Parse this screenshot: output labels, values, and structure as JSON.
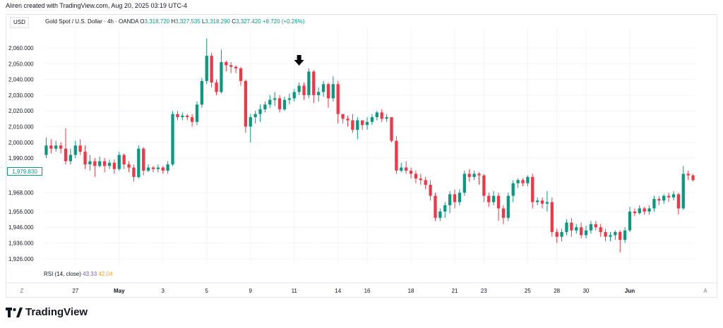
{
  "header": {
    "credit": "Aliren created with TradingView.com, Aug 20, 2025 03:19 UTC-4",
    "currency": "USD"
  },
  "legend": {
    "symbol": "Gold Spot / U.S. Dollar · 4h · OANDA",
    "o_label": "O",
    "o_value": "3,318.720",
    "h_label": "H",
    "h_value": "3,327.535",
    "l_label": "L",
    "l_value": "3,318.290",
    "c_label": "C",
    "c_value": "3,327.420",
    "change": "+8.720 (+0.26%)"
  },
  "rsi": {
    "label": "RSI (14, close)",
    "value1": "43.33",
    "value2": "42.04"
  },
  "current_price": "1,979.830",
  "brand": "TradingView",
  "axis": {
    "left_corner": "Z",
    "right_corner": "A"
  },
  "colors": {
    "up": "#089981",
    "down": "#f23645",
    "grid": "#f0f3fa",
    "arrow": "#000000"
  },
  "chart_data": {
    "type": "candlestick",
    "title": "",
    "ylim": [
      1920,
      2070
    ],
    "grid": true,
    "y_ticks": [
      {
        "value": 2060,
        "label": "2,060.000"
      },
      {
        "value": 2050,
        "label": "2,050.000"
      },
      {
        "value": 2040,
        "label": "2,040.000"
      },
      {
        "value": 2030,
        "label": "2,030.000"
      },
      {
        "value": 2020,
        "label": "2,020.000"
      },
      {
        "value": 2010,
        "label": "2,010.000"
      },
      {
        "value": 2000,
        "label": "2,000.000"
      },
      {
        "value": 1990,
        "label": "1,990.000"
      },
      {
        "value": 1968,
        "label": "1,968.000"
      },
      {
        "value": 1956,
        "label": "1,956.000"
      },
      {
        "value": 1946,
        "label": "1,946.000"
      },
      {
        "value": 1936,
        "label": "1,936.000"
      },
      {
        "value": 1926,
        "label": "1,926.000"
      }
    ],
    "x_ticks": [
      {
        "index": 6,
        "label": "27",
        "bold": false
      },
      {
        "index": 15,
        "label": "May",
        "bold": true
      },
      {
        "index": 24,
        "label": "3",
        "bold": false
      },
      {
        "index": 33,
        "label": "5",
        "bold": false
      },
      {
        "index": 42,
        "label": "9",
        "bold": false
      },
      {
        "index": 51,
        "label": "11",
        "bold": false
      },
      {
        "index": 60,
        "label": "14",
        "bold": false
      },
      {
        "index": 66,
        "label": "16",
        "bold": false
      },
      {
        "index": 75,
        "label": "18",
        "bold": false
      },
      {
        "index": 84,
        "label": "21",
        "bold": false
      },
      {
        "index": 90,
        "label": "23",
        "bold": false
      },
      {
        "index": 99,
        "label": "25",
        "bold": false
      },
      {
        "index": 105,
        "label": "28",
        "bold": false
      },
      {
        "index": 111,
        "label": "30",
        "bold": false
      },
      {
        "index": 120,
        "label": "Jun",
        "bold": true
      }
    ],
    "arrow_index": 52,
    "candles": [
      [
        1992,
        1998,
        1990,
        2003
      ],
      [
        1998,
        1996,
        1993,
        2002
      ],
      [
        1996,
        1998,
        1994,
        2001
      ],
      [
        1998,
        1996,
        1993,
        2000
      ],
      [
        1996,
        1988,
        1986,
        2009
      ],
      [
        1988,
        1992,
        1986,
        1996
      ],
      [
        1992,
        1998,
        1990,
        2001
      ],
      [
        1998,
        1994,
        1992,
        2002
      ],
      [
        1994,
        1986,
        1983,
        1998
      ],
      [
        1986,
        1988,
        1982,
        1992
      ],
      [
        1988,
        1985,
        1978,
        1990
      ],
      [
        1985,
        1988,
        1984,
        1991
      ],
      [
        1988,
        1985,
        1981,
        1990
      ],
      [
        1985,
        1987,
        1983,
        1989
      ],
      [
        1987,
        1983,
        1980,
        1989
      ],
      [
        1983,
        1992,
        1982,
        1994
      ],
      [
        1992,
        1986,
        1983,
        1993
      ],
      [
        1986,
        1984,
        1981,
        1988
      ],
      [
        1984,
        1978,
        1975,
        1986
      ],
      [
        1978,
        1996,
        1977,
        1998
      ],
      [
        1996,
        1982,
        1979,
        1997
      ],
      [
        1982,
        1984,
        1981,
        1986
      ],
      [
        1984,
        1983,
        1981,
        1985
      ],
      [
        1983,
        1984,
        1981,
        1986
      ],
      [
        1984,
        1982,
        1980,
        1985
      ],
      [
        1982,
        1986,
        1980,
        1988
      ],
      [
        1986,
        2018,
        1985,
        2020
      ],
      [
        2018,
        2016,
        2014,
        2020
      ],
      [
        2016,
        2017,
        2014,
        2019
      ],
      [
        2017,
        2016,
        2014,
        2018
      ],
      [
        2016,
        2013,
        2010,
        2018
      ],
      [
        2013,
        2024,
        2011,
        2026
      ],
      [
        2024,
        2039,
        2022,
        2041
      ],
      [
        2039,
        2055,
        2037,
        2066
      ],
      [
        2055,
        2038,
        2035,
        2057
      ],
      [
        2038,
        2032,
        2030,
        2040
      ],
      [
        2032,
        2051,
        2031,
        2059
      ],
      [
        2051,
        2049,
        2045,
        2052
      ],
      [
        2049,
        2048,
        2044,
        2051
      ],
      [
        2048,
        2047,
        2044,
        2049
      ],
      [
        2047,
        2039,
        2036,
        2048
      ],
      [
        2039,
        2010,
        2006,
        2040
      ],
      [
        2010,
        2016,
        2000,
        2018
      ],
      [
        2016,
        2018,
        2012,
        2020
      ],
      [
        2018,
        2021,
        2013,
        2024
      ],
      [
        2021,
        2024,
        2019,
        2026
      ],
      [
        2024,
        2027,
        2022,
        2030
      ],
      [
        2027,
        2028,
        2023,
        2032
      ],
      [
        2028,
        2021,
        2019,
        2030
      ],
      [
        2021,
        2027,
        2020,
        2029
      ],
      [
        2027,
        2028,
        2024,
        2031
      ],
      [
        2028,
        2032,
        2026,
        2034
      ],
      [
        2032,
        2036,
        2030,
        2038
      ],
      [
        2036,
        2030,
        2027,
        2038
      ],
      [
        2030,
        2045,
        2028,
        2047
      ],
      [
        2045,
        2030,
        2025,
        2046
      ],
      [
        2030,
        2032,
        2026,
        2035
      ],
      [
        2032,
        2037,
        2029,
        2039
      ],
      [
        2037,
        2028,
        2022,
        2038
      ],
      [
        2028,
        2037,
        2026,
        2042
      ],
      [
        2037,
        2018,
        2012,
        2039
      ],
      [
        2018,
        2015,
        2012,
        2018
      ],
      [
        2015,
        2014,
        2010,
        2017
      ],
      [
        2014,
        2008,
        2006,
        2018
      ],
      [
        2008,
        2014,
        2002,
        2016
      ],
      [
        2014,
        2011,
        2008,
        2014
      ],
      [
        2011,
        2013,
        2008,
        2016
      ],
      [
        2013,
        2016,
        2011,
        2018
      ],
      [
        2016,
        2019,
        2014,
        2020
      ],
      [
        2019,
        2015,
        2013,
        2021
      ],
      [
        2015,
        2016,
        2013,
        2018
      ],
      [
        2016,
        2001,
        2000,
        2016
      ],
      [
        2001,
        1982,
        1980,
        2004
      ],
      [
        1982,
        1984,
        1981,
        1987
      ],
      [
        1984,
        1982,
        1980,
        1988
      ],
      [
        1982,
        1980,
        1977,
        1984
      ],
      [
        1980,
        1977,
        1974,
        1982
      ],
      [
        1977,
        1976,
        1973,
        1980
      ],
      [
        1976,
        1973,
        1970,
        1978
      ],
      [
        1973,
        1966,
        1963,
        1976
      ],
      [
        1966,
        1952,
        1950,
        1968
      ],
      [
        1952,
        1956,
        1950,
        1958
      ],
      [
        1956,
        1960,
        1952,
        1962
      ],
      [
        1960,
        1967,
        1955,
        1969
      ],
      [
        1967,
        1962,
        1958,
        1970
      ],
      [
        1962,
        1968,
        1960,
        1970
      ],
      [
        1968,
        1980,
        1966,
        1982
      ],
      [
        1980,
        1978,
        1975,
        1983
      ],
      [
        1978,
        1980,
        1976,
        1982
      ],
      [
        1980,
        1979,
        1973,
        1981
      ],
      [
        1979,
        1966,
        1962,
        1980
      ],
      [
        1966,
        1962,
        1959,
        1968
      ],
      [
        1962,
        1966,
        1960,
        1969
      ],
      [
        1966,
        1958,
        1950,
        1968
      ],
      [
        1958,
        1952,
        1948,
        1960
      ],
      [
        1952,
        1966,
        1950,
        1968
      ],
      [
        1966,
        1974,
        1962,
        1976
      ],
      [
        1974,
        1976,
        1971,
        1977
      ],
      [
        1976,
        1974,
        1972,
        1977
      ],
      [
        1974,
        1978,
        1972,
        1979
      ],
      [
        1978,
        1962,
        1958,
        1980
      ],
      [
        1962,
        1963,
        1960,
        1965
      ],
      [
        1963,
        1961,
        1958,
        1965
      ],
      [
        1961,
        1962,
        1956,
        1969
      ],
      [
        1962,
        1943,
        1940,
        1965
      ],
      [
        1943,
        1940,
        1936,
        1945
      ],
      [
        1940,
        1943,
        1937,
        1945
      ],
      [
        1943,
        1949,
        1941,
        1951
      ],
      [
        1949,
        1944,
        1940,
        1952
      ],
      [
        1944,
        1946,
        1942,
        1948
      ],
      [
        1946,
        1941,
        1939,
        1949
      ],
      [
        1941,
        1944,
        1939,
        1947
      ],
      [
        1944,
        1948,
        1942,
        1950
      ],
      [
        1948,
        1946,
        1944,
        1950
      ],
      [
        1946,
        1943,
        1940,
        1948
      ],
      [
        1943,
        1940,
        1937,
        1945
      ],
      [
        1940,
        1941,
        1937,
        1943
      ],
      [
        1941,
        1943,
        1938,
        1944
      ],
      [
        1943,
        1938,
        1930,
        1944
      ],
      [
        1938,
        1944,
        1936,
        1946
      ],
      [
        1944,
        1956,
        1943,
        1959
      ],
      [
        1956,
        1955,
        1953,
        1958
      ],
      [
        1955,
        1958,
        1954,
        1960
      ],
      [
        1958,
        1956,
        1954,
        1959
      ],
      [
        1956,
        1958,
        1954,
        1960
      ],
      [
        1958,
        1964,
        1956,
        1966
      ],
      [
        1964,
        1963,
        1960,
        1966
      ],
      [
        1963,
        1966,
        1961,
        1967
      ],
      [
        1966,
        1965,
        1962,
        1968
      ],
      [
        1965,
        1967,
        1963,
        1969
      ],
      [
        1967,
        1958,
        1954,
        1968
      ],
      [
        1958,
        1980,
        1957,
        1985
      ],
      [
        1980,
        1979,
        1976,
        1982
      ],
      [
        1979,
        1976,
        1975,
        1980
      ]
    ]
  }
}
